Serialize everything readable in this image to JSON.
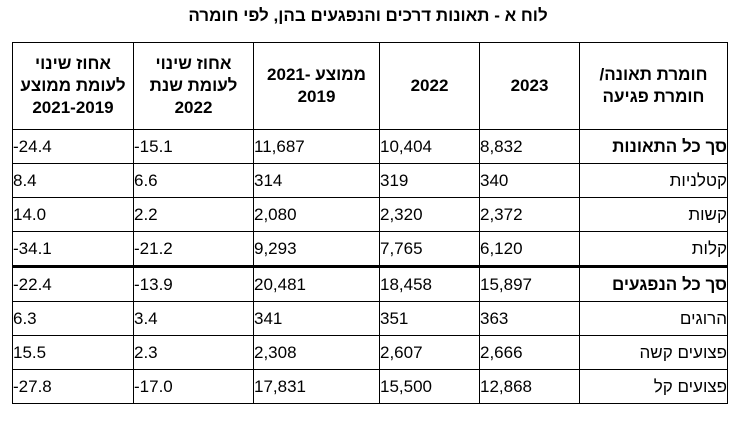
{
  "title": "לוח א - תאונות דרכים והנפגעים בהן, לפי חומרה",
  "headers": {
    "severity": "חומרת תאונה/ חומרת פגיעה",
    "y2023": "2023",
    "y2022": "2022",
    "avg": "ממוצע 2021-2019",
    "chg2022": "אחוז שינוי לעומת שנת 2022",
    "chgAvg": "אחוז שינוי לעומת ממוצע 2021-2019"
  },
  "rows": [
    {
      "label": "סך כל התאונות",
      "y2023": "8,832",
      "y2022": "10,404",
      "avg": "11,687",
      "chg2022": "-15.1",
      "chgAvg": "-24.4"
    },
    {
      "label": "קטלניות",
      "y2023": "340",
      "y2022": "319",
      "avg": "314",
      "chg2022": "6.6",
      "chgAvg": "8.4"
    },
    {
      "label": "קשות",
      "y2023": "2,372",
      "y2022": "2,320",
      "avg": "2,080",
      "chg2022": "2.2",
      "chgAvg": "14.0"
    },
    {
      "label": "קלות",
      "y2023": "6,120",
      "y2022": "7,765",
      "avg": "9,293",
      "chg2022": "-21.2",
      "chgAvg": "-34.1"
    },
    {
      "label": "סך כל הנפגעים",
      "y2023": "15,897",
      "y2022": "18,458",
      "avg": "20,481",
      "chg2022": "-13.9",
      "chgAvg": "-22.4"
    },
    {
      "label": "הרוגים",
      "y2023": "363",
      "y2022": "351",
      "avg": "341",
      "chg2022": "3.4",
      "chgAvg": "6.3"
    },
    {
      "label": "פצועים קשה",
      "y2023": "2,666",
      "y2022": "2,607",
      "avg": "2,308",
      "chg2022": "2.3",
      "chgAvg": "15.5"
    },
    {
      "label": "פצועים קל",
      "y2023": "12,868",
      "y2022": "15,500",
      "avg": "17,831",
      "chg2022": "-17.0",
      "chgAvg": "-27.8"
    }
  ]
}
